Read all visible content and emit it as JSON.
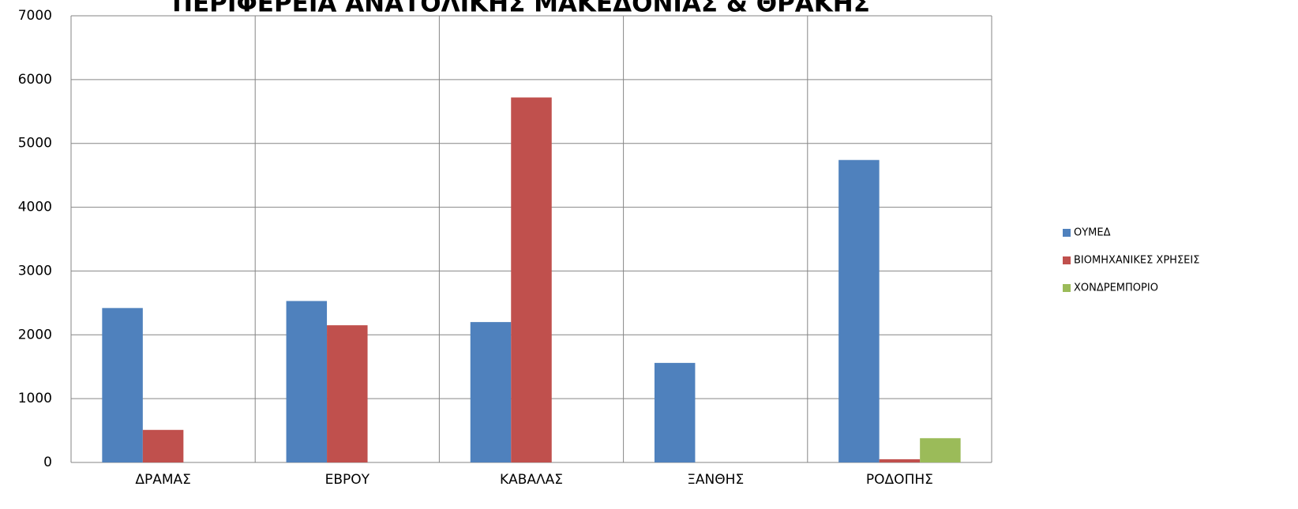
{
  "chart_data": {
    "type": "bar",
    "title": "ΠΕΡΙΦΕΡΕΙΑ ΑΝΑΤΟΛΙΚΗΣ ΜΑΚΕΔΟΝΙΑΣ & ΘΡΑΚΗΣ",
    "categories": [
      "ΔΡΑΜΑΣ",
      "ΕΒΡΟΥ",
      "ΚΑΒΑΛΑΣ",
      "ΞΑΝΘΗΣ",
      "ΡΟΔΟΠΗΣ"
    ],
    "series": [
      {
        "name": "ΟΥΜΕΔ",
        "color": "#4f81bd",
        "values": [
          2420,
          2530,
          2200,
          1560,
          4740
        ]
      },
      {
        "name": "ΒΙΟΜΗΧΑΝΙΚΕΣ ΧΡΗΣΕΙΣ",
        "color": "#c0504d",
        "values": [
          510,
          2150,
          5720,
          0,
          50
        ]
      },
      {
        "name": "ΧΟΝΔΡΕΜΠΟΡΙΟ",
        "color": "#9bbb59",
        "values": [
          0,
          0,
          0,
          0,
          380
        ]
      }
    ],
    "ylim": [
      0,
      7000
    ],
    "yticks": [
      0,
      1000,
      2000,
      3000,
      4000,
      5000,
      6000,
      7000
    ],
    "grid": true,
    "legend": "right"
  }
}
